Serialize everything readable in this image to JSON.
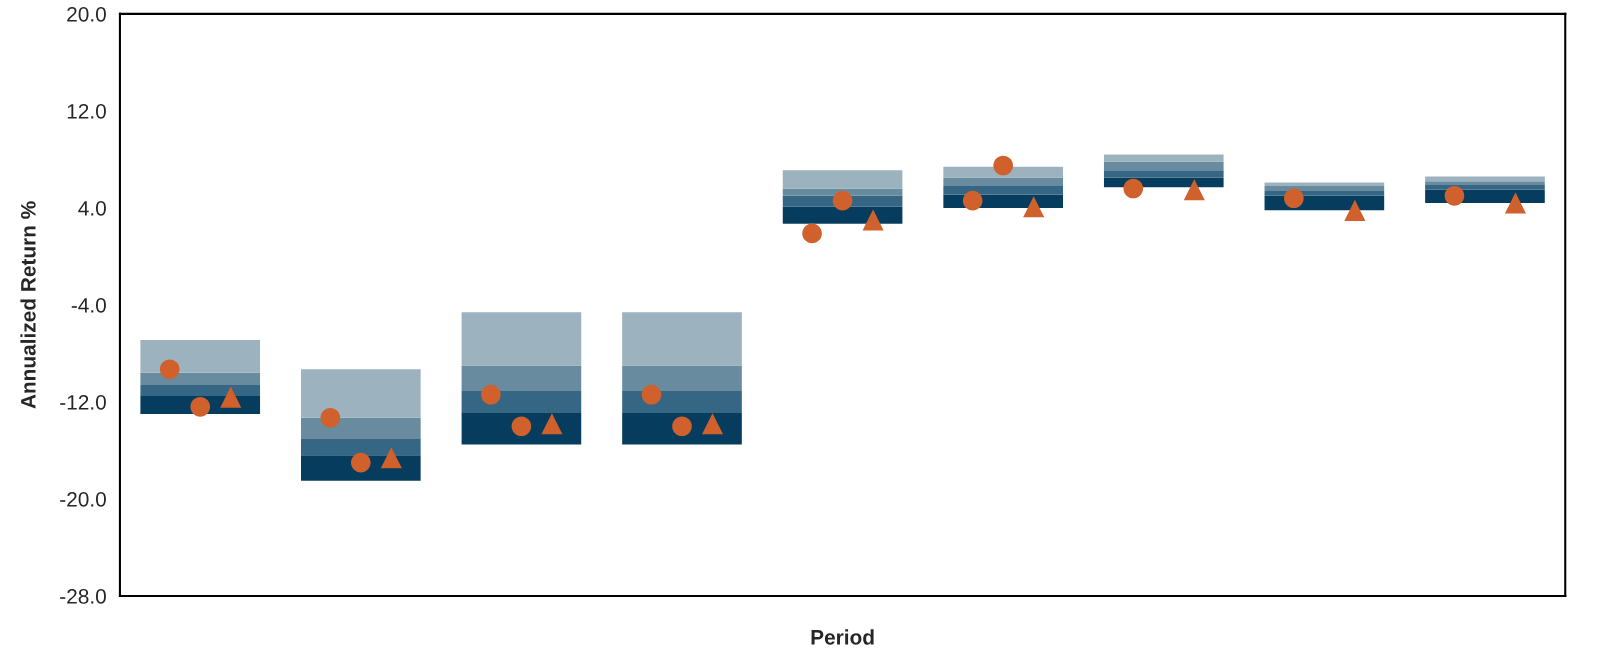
{
  "chart_data": {
    "type": "bar",
    "xlabel": "Period",
    "ylabel": "Annualized Return %",
    "categories": [
      null,
      null,
      null,
      null,
      null,
      null,
      null,
      null,
      null
    ],
    "series": [
      {
        "color": "#063d5e",
        "base": [
          -13.0,
          -18.5,
          -15.5,
          -15.5,
          2.7,
          4.0,
          5.7,
          3.8,
          4.4
        ],
        "values": [
          1.5,
          2.1,
          2.6,
          2.6,
          1.4,
          1.1,
          0.8,
          1.2,
          1.1
        ]
      },
      {
        "color": "#356683",
        "base": [
          -11.5,
          -16.4,
          -12.9,
          -12.9,
          4.1,
          5.1,
          6.5,
          5.0,
          5.5
        ],
        "values": [
          0.9,
          1.4,
          1.8,
          1.8,
          0.9,
          0.7,
          0.6,
          0.4,
          0.4
        ]
      },
      {
        "color": "#688ba0",
        "base": [
          -10.6,
          -15.0,
          -11.1,
          -11.1,
          5.0,
          5.8,
          7.1,
          5.4,
          5.9
        ],
        "values": [
          1.0,
          1.7,
          2.1,
          2.1,
          0.6,
          0.7,
          0.7,
          0.4,
          0.3
        ]
      },
      {
        "color": "#9cb2bf",
        "base": [
          -9.6,
          -13.3,
          -9.0,
          -9.0,
          5.6,
          6.5,
          7.8,
          5.8,
          6.2
        ],
        "values": [
          2.7,
          4.0,
          4.4,
          4.4,
          1.5,
          0.9,
          0.6,
          0.3,
          0.4
        ]
      },
      {
        "type": "scatter",
        "marker": "circle",
        "color": "#d0612c",
        "values": [
          -9.3,
          -13.3,
          -11.4,
          -11.4,
          1.9,
          4.6,
          5.6,
          4.8,
          5.0
        ]
      },
      {
        "type": "scatter",
        "marker": "circle",
        "color": "#d0612c",
        "values": [
          -12.4,
          -17.0,
          -14.0,
          -14.0,
          4.6,
          7.5,
          null,
          null,
          null
        ]
      },
      {
        "type": "scatter",
        "marker": "triangle",
        "color": "#d0612c",
        "values": [
          -11.6,
          -16.6,
          -13.8,
          -13.8,
          3.0,
          4.1,
          5.5,
          3.8,
          4.4
        ]
      }
    ],
    "ylim": [
      -28,
      20
    ],
    "yticks": [
      {
        "value": -28,
        "label": "-28.0"
      },
      {
        "value": -20,
        "label": "-20.0"
      },
      {
        "value": -12,
        "label": "-12.0"
      },
      {
        "value": -4,
        "label": "-4.0"
      },
      {
        "value": 4,
        "label": "4.0"
      },
      {
        "value": 12,
        "label": "12.0"
      },
      {
        "value": 20,
        "label": "20.0"
      }
    ],
    "tick_labels": "y",
    "grid": false,
    "legend": false
  }
}
